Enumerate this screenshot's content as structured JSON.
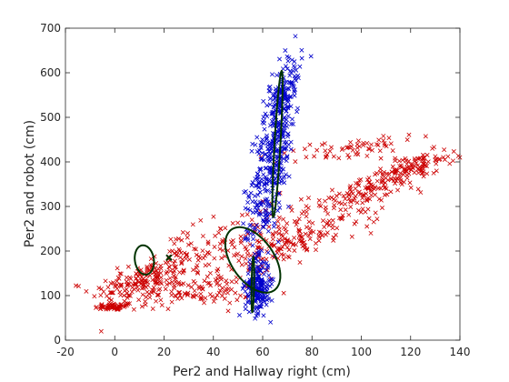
{
  "chart_data": {
    "type": "scatter",
    "title": "",
    "xlabel": "Per2 and Hallway right (cm)",
    "ylabel": "Per2 and robot (cm)",
    "xlim": [
      -20,
      140
    ],
    "ylim": [
      0,
      700
    ],
    "xticks": [
      -20,
      0,
      20,
      40,
      60,
      80,
      100,
      120,
      140
    ],
    "yticks": [
      0,
      100,
      200,
      300,
      400,
      500,
      600,
      700
    ],
    "grid": false,
    "box": true,
    "series": [
      {
        "marker": "x",
        "color": "#cc0000",
        "clusters": [
          {
            "cx": 0,
            "cy": 75,
            "sx": 4,
            "sy": 4,
            "rho": 0.3,
            "n": 60
          },
          {
            "cx": 10,
            "cy": 130,
            "sx": 10,
            "sy": 25,
            "rho": 0.5,
            "n": 130
          },
          {
            "cx": 25,
            "cy": 175,
            "sx": 11,
            "sy": 38,
            "rho": 0.6,
            "n": 120
          },
          {
            "cx": 35,
            "cy": 110,
            "sx": 12,
            "sy": 18,
            "rho": 0.3,
            "n": 100
          },
          {
            "cx": 75,
            "cy": 225,
            "sx": 16,
            "sy": 35,
            "rho": 0.85,
            "n": 160
          },
          {
            "cx": 105,
            "cy": 345,
            "sx": 14,
            "sy": 32,
            "rho": 0.85,
            "n": 160
          },
          {
            "cx": 122,
            "cy": 390,
            "sx": 8,
            "sy": 18,
            "rho": 0.7,
            "n": 70
          },
          {
            "cx": 95,
            "cy": 430,
            "sx": 14,
            "sy": 18,
            "rho": 0.7,
            "n": 60
          },
          {
            "cx": 60,
            "cy": 250,
            "sx": 8,
            "sy": 40,
            "rho": 0.3,
            "n": 60
          }
        ]
      },
      {
        "marker": "x",
        "color": "#0000cc",
        "clusters": [
          {
            "cx": 65,
            "cy": 440,
            "sx": 4,
            "sy": 80,
            "rho": 0.5,
            "n": 320
          },
          {
            "cx": 70,
            "cy": 570,
            "sx": 3,
            "sy": 40,
            "rho": 0.4,
            "n": 90
          },
          {
            "cx": 58,
            "cy": 120,
            "sx": 2.5,
            "sy": 30,
            "rho": 0.1,
            "n": 200
          },
          {
            "cx": 59,
            "cy": 270,
            "sx": 4,
            "sy": 60,
            "rho": 0.2,
            "n": 80
          }
        ]
      }
    ],
    "ellipses": [
      {
        "cx": 12,
        "cy": 180,
        "a": 32,
        "b": 40,
        "angle_deg": 72
      },
      {
        "cx": 56,
        "cy": 180,
        "a": 60,
        "b": 120,
        "angle_deg": 66
      },
      {
        "cx": 66,
        "cy": 440,
        "a": 165,
        "b": 12,
        "angle_deg": 84
      },
      {
        "cx": 56,
        "cy": 125,
        "a": 62,
        "b": 5,
        "angle_deg": 88
      }
    ],
    "ellipse_color": "#003300",
    "points_marked": [
      {
        "x": 22,
        "y": 185,
        "color": "#003300",
        "marker": "x"
      }
    ]
  }
}
